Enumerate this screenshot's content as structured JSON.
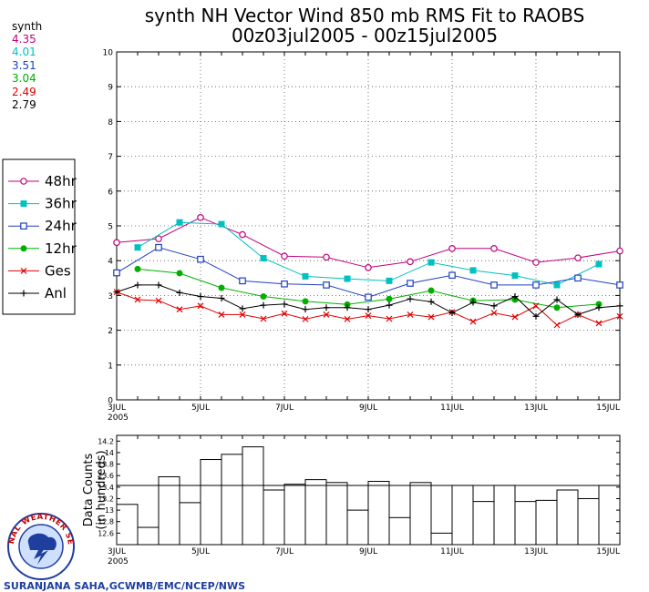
{
  "title_line1": "synth NH Vector Wind 850 mb RMS Fit to RAOBS",
  "title_line2": "00z03jul2005 - 00z15jul2005",
  "stats": {
    "label": "synth",
    "items": [
      {
        "value": "4.35",
        "color": "#c0007f"
      },
      {
        "value": "4.01",
        "color": "#00c0c0"
      },
      {
        "value": "3.51",
        "color": "#2040c0"
      },
      {
        "value": "3.04",
        "color": "#00b000"
      },
      {
        "value": "2.49",
        "color": "#e00000"
      },
      {
        "value": "2.79",
        "color": "#000000"
      }
    ]
  },
  "legend_labels": [
    "48hr",
    "36hr",
    "24hr",
    "12hr",
    "Ges",
    "Anl"
  ],
  "xticks": [
    "3JUL",
    "5JUL",
    "7JUL",
    "9JUL",
    "11JUL",
    "13JUL",
    "15JUL"
  ],
  "year_label": "2005",
  "credit": "SURANJANA SAHA,GCWMB/EMC/NCEP/NWS",
  "logo_text": "NATIONAL WEATHER SERVICE",
  "chart_data": [
    {
      "type": "line",
      "title": "synth NH Vector Wind 850 mb RMS Fit to RAOBS",
      "ylim": [
        0,
        10
      ],
      "yticks": [
        0,
        1,
        2,
        3,
        4,
        5,
        6,
        7,
        8,
        9,
        10
      ],
      "xlim": [
        0,
        12
      ],
      "xtick_positions": [
        0,
        2,
        4,
        6,
        8,
        10,
        12
      ],
      "series": [
        {
          "name": "48hr",
          "color": "#c0007f",
          "marker": "circle-open",
          "x": [
            0,
            1,
            2,
            3,
            4,
            5,
            6,
            7,
            8,
            9,
            10,
            11,
            12
          ],
          "y": [
            4.52,
            4.63,
            5.24,
            4.75,
            4.13,
            4.1,
            3.8,
            3.97,
            4.35,
            4.35,
            3.95,
            4.08,
            4.28
          ]
        },
        {
          "name": "36hr",
          "color": "#00c0c0",
          "marker": "square-filled",
          "x": [
            0.5,
            1.5,
            2.5,
            3.5,
            4.5,
            5.5,
            6.5,
            7.5,
            8.5,
            9.5,
            10.5,
            11.5
          ],
          "y": [
            4.38,
            5.1,
            5.05,
            4.07,
            3.55,
            3.48,
            3.42,
            3.95,
            3.72,
            3.57,
            3.3,
            3.9
          ]
        },
        {
          "name": "24hr",
          "color": "#2040c0",
          "marker": "square-open",
          "x": [
            0,
            1,
            2,
            3,
            4,
            5,
            6,
            7,
            8,
            9,
            10,
            11,
            12
          ],
          "y": [
            3.65,
            4.38,
            4.04,
            3.42,
            3.33,
            3.3,
            2.95,
            3.35,
            3.58,
            3.3,
            3.3,
            3.5,
            3.3
          ]
        },
        {
          "name": "12hr",
          "color": "#00b000",
          "marker": "circle-filled",
          "x": [
            0.5,
            1.5,
            2.5,
            3.5,
            4.5,
            5.5,
            6.5,
            7.5,
            8.5,
            9.5,
            10.5,
            11.5
          ],
          "y": [
            3.76,
            3.64,
            3.22,
            2.97,
            2.83,
            2.74,
            2.9,
            3.14,
            2.85,
            2.88,
            2.65,
            2.75
          ]
        },
        {
          "name": "Ges",
          "color": "#e00000",
          "marker": "x",
          "x": [
            0,
            0.5,
            1,
            1.5,
            2,
            2.5,
            3,
            3.5,
            4,
            4.5,
            5,
            5.5,
            6,
            6.5,
            7,
            7.5,
            8,
            8.5,
            9,
            9.5,
            10,
            10.5,
            11,
            11.5,
            12
          ],
          "y": [
            3.1,
            2.88,
            2.85,
            2.6,
            2.7,
            2.45,
            2.45,
            2.33,
            2.48,
            2.32,
            2.45,
            2.32,
            2.42,
            2.33,
            2.45,
            2.38,
            2.52,
            2.25,
            2.5,
            2.38,
            2.7,
            2.15,
            2.45,
            2.2,
            2.4
          ]
        },
        {
          "name": "Anl",
          "color": "#000000",
          "marker": "plus",
          "x": [
            0,
            0.5,
            1,
            1.5,
            2,
            2.5,
            3,
            3.5,
            4,
            4.5,
            5,
            5.5,
            6,
            6.5,
            7,
            7.5,
            8,
            8.5,
            9,
            9.5,
            10,
            10.5,
            11,
            11.5,
            12
          ],
          "y": [
            3.1,
            3.3,
            3.3,
            3.08,
            2.97,
            2.92,
            2.62,
            2.72,
            2.75,
            2.6,
            2.65,
            2.65,
            2.6,
            2.72,
            2.9,
            2.82,
            2.5,
            2.8,
            2.7,
            2.97,
            2.4,
            2.88,
            2.45,
            2.65,
            2.7
          ]
        }
      ]
    },
    {
      "type": "bar",
      "ylabel": "Data Counts (in hundreds)",
      "ylim": [
        12.4,
        14.3
      ],
      "yticks": [
        12.6,
        12.8,
        13,
        13.2,
        13.4,
        13.6,
        13.8,
        14,
        14.2
      ],
      "reference_line": 13.43,
      "xlim": [
        0,
        12
      ],
      "bins_start": 0,
      "bin_width": 0.5,
      "values": [
        13.1,
        12.7,
        13.58,
        13.13,
        13.88,
        13.97,
        14.1,
        13.35,
        13.45,
        13.53,
        13.48,
        13.0,
        13.5,
        12.87,
        13.48,
        12.6,
        13.43,
        13.15,
        13.43,
        13.15,
        13.17,
        13.35,
        13.2,
        13.43,
        13.83,
        13.2
      ]
    }
  ]
}
